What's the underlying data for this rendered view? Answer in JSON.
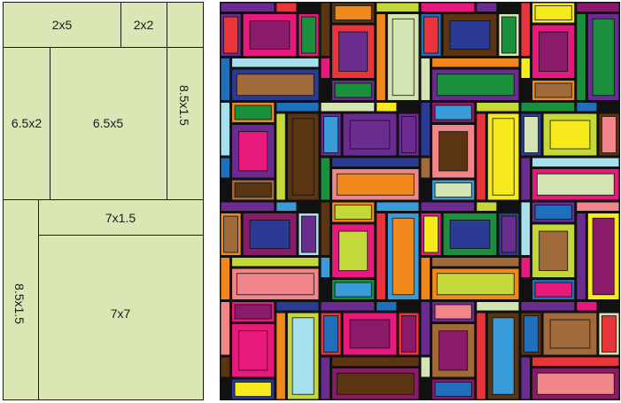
{
  "left_diagram": {
    "labels": {
      "a": "2x5",
      "b": "2x2",
      "c": "8.5x1.5",
      "d": "6.5x2",
      "e": "6.5x5",
      "f": "7x1.5",
      "g": "8.5x1.5",
      "h": "7x7"
    },
    "fill_color": "#d9e7b5",
    "stroke_color": "#1a1a1a"
  },
  "tiling_pattern": {
    "palette": [
      "#c4d83a",
      "#e8197d",
      "#f0881c",
      "#1a8f3c",
      "#2b3a92",
      "#f6ea1d",
      "#1f6fba",
      "#6a2c8f",
      "#e8343a",
      "#a6e0ec",
      "#5b3411",
      "#f1868a",
      "#a06a3a",
      "#3a9bd9",
      "#8a1a6a",
      "#d4e4b2"
    ],
    "border_color": "#111111"
  }
}
